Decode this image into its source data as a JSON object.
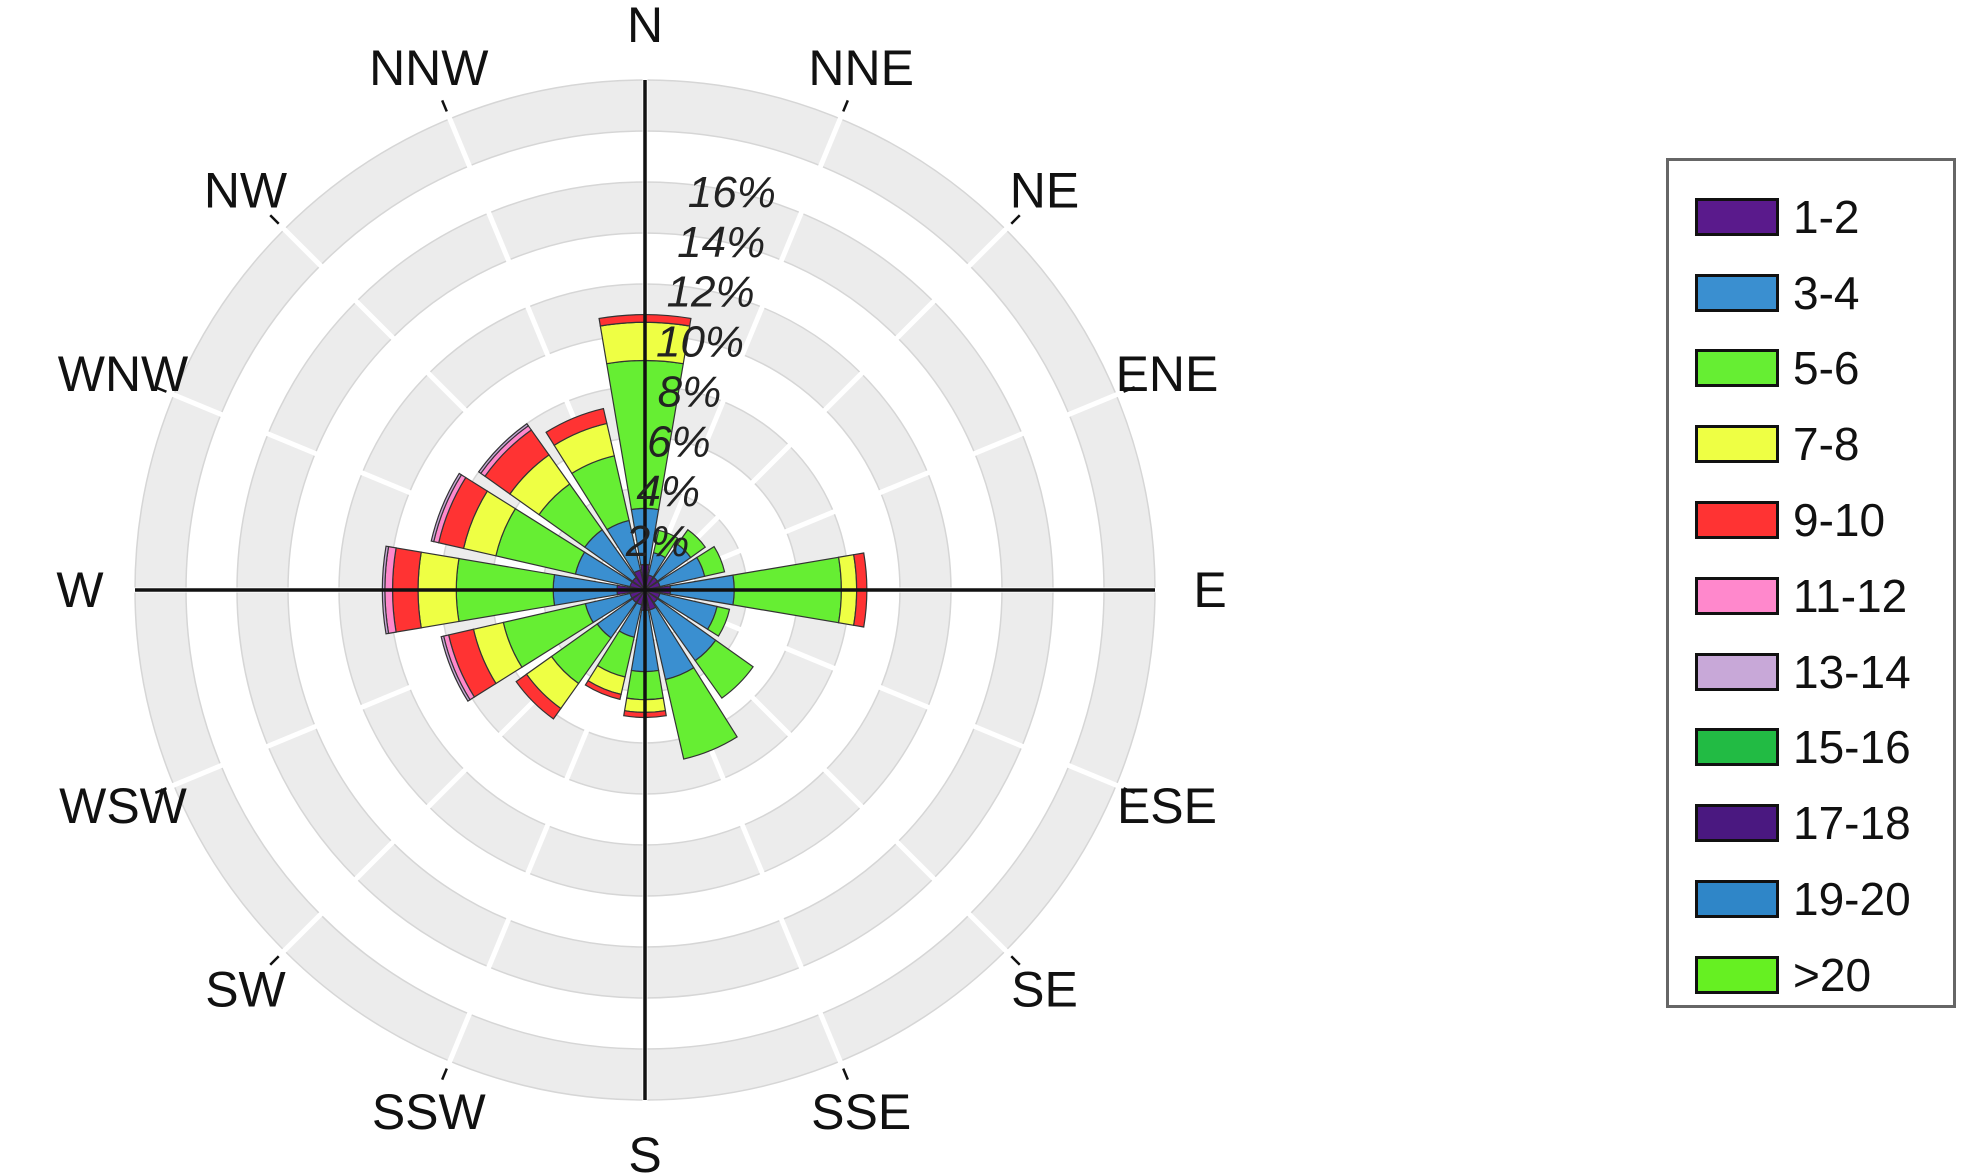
{
  "chart_data": {
    "type": "wind-rose",
    "directions": [
      "N",
      "NNE",
      "NE",
      "ENE",
      "E",
      "ESE",
      "SE",
      "SSE",
      "S",
      "SSW",
      "SW",
      "WSW",
      "W",
      "WNW",
      "NW",
      "NNW"
    ],
    "ring_values": [
      2,
      4,
      6,
      8,
      10,
      12,
      14,
      16
    ],
    "ring_labels": [
      "2%",
      "4%",
      "6%",
      "8%",
      "10%",
      "12%",
      "14%",
      "16%"
    ],
    "rmax": 20,
    "series": [
      {
        "name": "1-2",
        "color": "#5a1a8c",
        "values": [
          1.0,
          0.6,
          0.6,
          0.6,
          1.0,
          0.6,
          0.6,
          0.8,
          0.8,
          0.6,
          0.6,
          0.6,
          1.1,
          0.6,
          0.6,
          0.8
        ]
      },
      {
        "name": "3-4",
        "color": "#3a8fd0",
        "values": [
          2.2,
          0.9,
          1.6,
          1.8,
          2.5,
          2.3,
          2.8,
          2.8,
          2.4,
          1.3,
          1.7,
          1.8,
          2.5,
          2.2,
          2.3,
          2.0
        ]
      },
      {
        "name": "5-6",
        "color": "#66ee33",
        "values": [
          5.8,
          0.9,
          0.7,
          0.8,
          4.2,
          0.5,
          1.8,
          3.2,
          1.1,
          1.6,
          2.2,
          3.3,
          3.8,
          3.2,
          2.2,
          2.6
        ]
      },
      {
        "name": "7-8",
        "color": "#eeff44",
        "values": [
          1.5,
          0,
          0,
          0,
          0.6,
          0,
          0,
          0,
          0.5,
          0.7,
          1.2,
          1.2,
          1.5,
          1.3,
          1.4,
          1.3
        ]
      },
      {
        "name": "9-10",
        "color": "#ff3333",
        "values": [
          0.3,
          0,
          0,
          0,
          0.4,
          0,
          0,
          0,
          0.2,
          0.2,
          0.5,
          1.0,
          1.0,
          1.0,
          1.2,
          0.6
        ]
      },
      {
        "name": "11-12",
        "color": "#ff88cc",
        "values": [
          0,
          0,
          0,
          0,
          0,
          0,
          0,
          0,
          0,
          0,
          0,
          0.2,
          0.3,
          0.2,
          0.2,
          0
        ]
      },
      {
        "name": "13-14",
        "color": "#c8a8d8",
        "values": [
          0,
          0,
          0,
          0,
          0,
          0,
          0,
          0,
          0,
          0,
          0,
          0.1,
          0.1,
          0.1,
          0.1,
          0
        ]
      },
      {
        "name": "15-16",
        "color": "#22bb44",
        "values": [
          0,
          0,
          0,
          0,
          0,
          0,
          0,
          0,
          0,
          0,
          0,
          0,
          0,
          0,
          0,
          0
        ]
      },
      {
        "name": "17-18",
        "color": "#4a1880",
        "values": [
          0,
          0,
          0,
          0,
          0,
          0,
          0,
          0,
          0,
          0,
          0,
          0,
          0,
          0,
          0,
          0
        ]
      },
      {
        "name": "19-20",
        "color": "#2f86c8",
        "values": [
          0,
          0,
          0,
          0,
          0,
          0,
          0,
          0,
          0,
          0,
          0,
          0,
          0,
          0,
          0,
          0
        ]
      },
      {
        "name": ">20",
        "color": "#66f022",
        "values": [
          0,
          0,
          0,
          0,
          0,
          0,
          0,
          0,
          0,
          0,
          0,
          0,
          0,
          0,
          0,
          0
        ]
      }
    ],
    "legend_position": "right",
    "grid": true
  }
}
